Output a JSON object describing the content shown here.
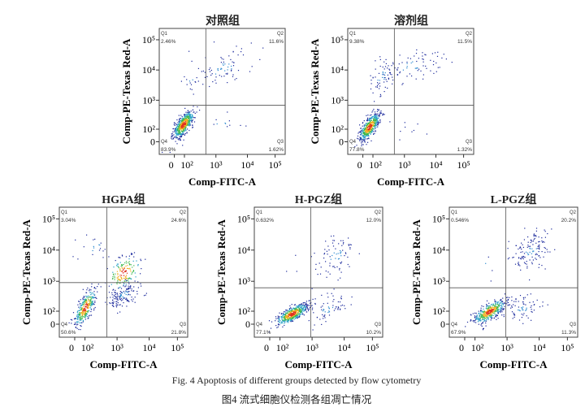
{
  "chart_data": [
    {
      "type": "scatter",
      "title": "对照组",
      "xlabel": "Comp-FITC-A",
      "ylabel": "Comp-PE-Texas Red-A",
      "xticks": [
        "0",
        "10²",
        "10³",
        "10⁴",
        "10⁵"
      ],
      "yticks": [
        "0",
        "10²",
        "10³",
        "10⁴",
        "10⁵"
      ],
      "x_scale": "biexponential",
      "y_scale": "biexponential",
      "grid": false,
      "quadrants": [
        {
          "label": "Q1",
          "value": "2.46%"
        },
        {
          "label": "Q2",
          "value": "11.6%"
        },
        {
          "label": "Q3",
          "value": "1.62%"
        },
        {
          "label": "Q4",
          "value": "83.9%"
        }
      ]
    },
    {
      "type": "scatter",
      "title": "溶剂组",
      "xlabel": "Comp-FITC-A",
      "ylabel": "Comp-PE-Texas Red-A",
      "xticks": [
        "0",
        "10²",
        "10³",
        "10⁴",
        "10⁵"
      ],
      "yticks": [
        "0",
        "10²",
        "10³",
        "10⁴",
        "10⁵"
      ],
      "x_scale": "biexponential",
      "y_scale": "biexponential",
      "grid": false,
      "quadrants": [
        {
          "label": "Q1",
          "value": "9.38%"
        },
        {
          "label": "Q2",
          "value": "11.5%"
        },
        {
          "label": "Q3",
          "value": "1.32%"
        },
        {
          "label": "Q4",
          "value": "77.8%"
        }
      ]
    },
    {
      "type": "scatter",
      "title": "HGPA组",
      "xlabel": "Comp-FITC-A",
      "ylabel": "Comp-PE-Texas Red-A",
      "xticks": [
        "0",
        "10²",
        "10³",
        "10⁴",
        "10⁵"
      ],
      "yticks": [
        "0",
        "10²",
        "10³",
        "10⁴",
        "10⁵"
      ],
      "x_scale": "biexponential",
      "y_scale": "biexponential",
      "grid": false,
      "quadrants": [
        {
          "label": "Q1",
          "value": "3.04%"
        },
        {
          "label": "Q2",
          "value": "24.6%"
        },
        {
          "label": "Q3",
          "value": "21.8%"
        },
        {
          "label": "Q4",
          "value": "50.6%"
        }
      ]
    },
    {
      "type": "scatter",
      "title": "H-PGZ组",
      "xlabel": "Comp-FITC-A",
      "ylabel": "Comp-PE-Texas Red-A",
      "xticks": [
        "0",
        "10²",
        "10³",
        "10⁴",
        "10⁵"
      ],
      "yticks": [
        "0",
        "10²",
        "10³",
        "10⁴",
        "10⁵"
      ],
      "x_scale": "biexponential",
      "y_scale": "biexponential",
      "grid": false,
      "quadrants": [
        {
          "label": "Q1",
          "value": "0.632%"
        },
        {
          "label": "Q2",
          "value": "12.0%"
        },
        {
          "label": "Q3",
          "value": "10.2%"
        },
        {
          "label": "Q4",
          "value": "77.1%"
        }
      ]
    },
    {
      "type": "scatter",
      "title": "L-PGZ组",
      "xlabel": "Comp-FITC-A",
      "ylabel": "Comp-PE-Texas Red-A",
      "xticks": [
        "0",
        "10²",
        "10³",
        "10⁴",
        "10⁵"
      ],
      "yticks": [
        "0",
        "10²",
        "10³",
        "10⁴",
        "10⁵"
      ],
      "x_scale": "biexponential",
      "y_scale": "biexponential",
      "grid": false,
      "quadrants": [
        {
          "label": "Q1",
          "value": "0.546%"
        },
        {
          "label": "Q2",
          "value": "20.2%"
        },
        {
          "label": "Q3",
          "value": "11.3%"
        },
        {
          "label": "Q4",
          "value": "67.9%"
        }
      ]
    }
  ],
  "caption": {
    "en": "Fig. 4    Apoptosis of different groups detected by flow cytometry",
    "zh": "图4    流式细胞仪检测各组凋亡情况"
  }
}
